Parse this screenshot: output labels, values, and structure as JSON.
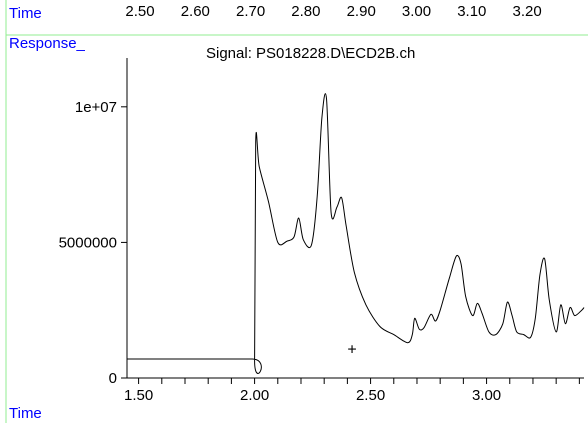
{
  "chart_data": {
    "type": "line",
    "title": "Signal: PS018228.D\\ECD2B.ch",
    "ylabel": "Response_",
    "xlabel": "Time",
    "top_axis_label": "Time",
    "top_axis_ticks": [
      "2.50",
      "2.60",
      "2.70",
      "2.80",
      "2.90",
      "3.00",
      "3.10",
      "3.20"
    ],
    "x_ticks": [
      "1.50",
      "2.00",
      "2.50",
      "3.00"
    ],
    "y_ticks": [
      "0",
      "5000000",
      "1e+07"
    ],
    "xlim": [
      1.45,
      3.42
    ],
    "ylim": [
      0,
      11800000
    ],
    "marker": {
      "symbol": "+",
      "x": 2.42,
      "y": 1050000
    },
    "series": [
      {
        "x": [
          1.45,
          1.99,
          2.0,
          2.005,
          2.02,
          2.06,
          2.1,
          2.14,
          2.17,
          2.19,
          2.21,
          2.245,
          2.27,
          2.29,
          2.31,
          2.33,
          2.355,
          2.375,
          2.395,
          2.43,
          2.48,
          2.54,
          2.6,
          2.66,
          2.68,
          2.69,
          2.71,
          2.73,
          2.76,
          2.78,
          2.8,
          2.84,
          2.87,
          2.89,
          2.91,
          2.94,
          2.96,
          2.98,
          3.01,
          3.04,
          3.07,
          3.09,
          3.11,
          3.13,
          3.16,
          3.19,
          3.21,
          3.23,
          3.25,
          3.27,
          3.3,
          3.32,
          3.34,
          3.36,
          3.38,
          3.41,
          3.42
        ],
        "y": [
          700000,
          700000,
          700000,
          8700000,
          7800000,
          6500000,
          5000000,
          5050000,
          5200000,
          5900000,
          5100000,
          4900000,
          6700000,
          9600000,
          10300000,
          6100000,
          6300000,
          6650000,
          5600000,
          3900000,
          2700000,
          1900000,
          1600000,
          1300000,
          1600000,
          2200000,
          1800000,
          1850000,
          2350000,
          2100000,
          2500000,
          3700000,
          4500000,
          4200000,
          3000000,
          2300000,
          2750000,
          2400000,
          1700000,
          1600000,
          2000000,
          2800000,
          2300000,
          1700000,
          1600000,
          1500000,
          2200000,
          3800000,
          4400000,
          2900000,
          1700000,
          2700000,
          2000000,
          2600000,
          2300000,
          2500000,
          2600000
        ]
      }
    ]
  }
}
